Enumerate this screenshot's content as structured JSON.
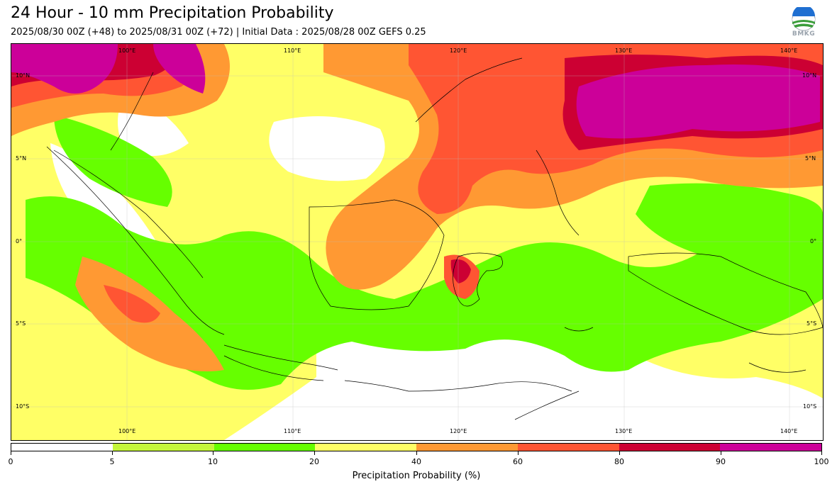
{
  "header": {
    "title": "24 Hour - 10 mm Precipitation Probability",
    "subtitle": "2025/08/30 00Z (+48) to 2025/08/31 00Z (+72) | Initial Data : 2025/08/28 00Z GEFS 0.25",
    "logo_text": "BMKG"
  },
  "map": {
    "lon_labels": [
      "100°E",
      "110°E",
      "120°E",
      "130°E",
      "140°E"
    ],
    "lat_labels": [
      "10°N",
      "5°N",
      "0°",
      "5°S",
      "10°S"
    ],
    "extent": {
      "lon_min": 93,
      "lon_max": 142,
      "lat_min": -12.5,
      "lat_max": 11.5
    }
  },
  "colorbar": {
    "ticks": [
      "0",
      "5",
      "10",
      "20",
      "40",
      "60",
      "80",
      "90",
      "100"
    ],
    "colors": [
      "#ffffff",
      "#c4f53a",
      "#66ff00",
      "#ffff66",
      "#ff9933",
      "#ff5533",
      "#cc0033",
      "#cc0099"
    ],
    "label": "Precipitation Probability (%)"
  }
}
